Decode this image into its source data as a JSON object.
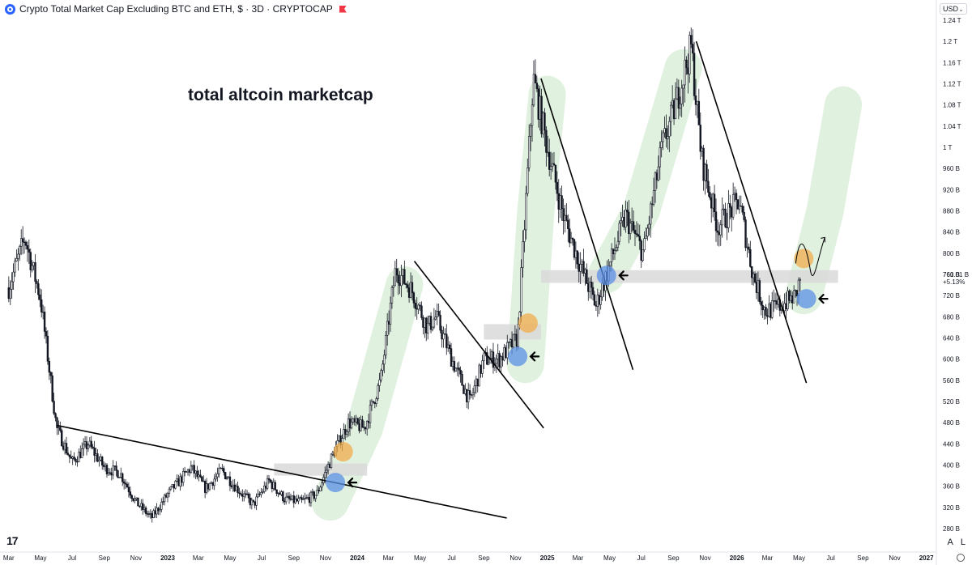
{
  "header": {
    "title": "Crypto Total Market Cap Excluding BTC and ETH, $ · 3D · CRYPTOCAP",
    "currency": "USD"
  },
  "annotation": "total altcoin marketcap",
  "price_label": {
    "value": "761.01 B",
    "change": "+5.13%"
  },
  "corner_buttons": [
    "A",
    "L"
  ],
  "chart_data": {
    "type": "candlestick",
    "title": "Crypto Total Market Cap Excluding BTC and ETH",
    "y_unit": "B",
    "ylim": [
      265,
      1245
    ],
    "y_ticks": [
      "280 B",
      "320 B",
      "360 B",
      "400 B",
      "440 B",
      "480 B",
      "520 B",
      "560 B",
      "600 B",
      "640 B",
      "680 B",
      "720 B",
      "760 B",
      "800 B",
      "840 B",
      "880 B",
      "920 B",
      "960 B",
      "1 T",
      "1.04 T",
      "1.08 T",
      "1.12 T",
      "1.16 T",
      "1.2 T",
      "1.24 T"
    ],
    "x_ticks": [
      "Mar",
      "May",
      "Jul",
      "Sep",
      "Nov",
      "2023",
      "Mar",
      "May",
      "Jul",
      "Sep",
      "Nov",
      "2024",
      "Mar",
      "May",
      "Jul",
      "Sep",
      "Nov",
      "2025",
      "Mar",
      "May",
      "Jul",
      "Sep",
      "Nov",
      "2026",
      "Mar",
      "May",
      "Jul",
      "Sep",
      "Nov",
      "2027"
    ],
    "price_path": [
      [
        "2022-03-01",
        735
      ],
      [
        "2022-04-01",
        830
      ],
      [
        "2022-05-01",
        715
      ],
      [
        "2022-06-01",
        470
      ],
      [
        "2022-07-01",
        405
      ],
      [
        "2022-08-01",
        440
      ],
      [
        "2022-09-01",
        395
      ],
      [
        "2022-10-01",
        385
      ],
      [
        "2022-11-01",
        330
      ],
      [
        "2022-12-01",
        300
      ],
      [
        "2023-01-01",
        345
      ],
      [
        "2023-02-15",
        395
      ],
      [
        "2023-03-15",
        355
      ],
      [
        "2023-04-15",
        390
      ],
      [
        "2023-05-15",
        355
      ],
      [
        "2023-06-15",
        325
      ],
      [
        "2023-07-15",
        370
      ],
      [
        "2023-08-15",
        335
      ],
      [
        "2023-09-15",
        330
      ],
      [
        "2023-10-15",
        345
      ],
      [
        "2023-11-15",
        420
      ],
      [
        "2023-12-15",
        480
      ],
      [
        "2024-01-15",
        470
      ],
      [
        "2024-02-15",
        560
      ],
      [
        "2024-03-15",
        770
      ],
      [
        "2024-04-15",
        730
      ],
      [
        "2024-05-15",
        660
      ],
      [
        "2024-06-01",
        680
      ],
      [
        "2024-07-01",
        600
      ],
      [
        "2024-08-05",
        520
      ],
      [
        "2024-09-01",
        600
      ],
      [
        "2024-10-01",
        600
      ],
      [
        "2024-11-05",
        640
      ],
      [
        "2024-12-05",
        1130
      ],
      [
        "2025-01-01",
        1000
      ],
      [
        "2025-02-01",
        870
      ],
      [
        "2025-03-01",
        790
      ],
      [
        "2025-04-05",
        700
      ],
      [
        "2025-04-25",
        760
      ],
      [
        "2025-06-01",
        870
      ],
      [
        "2025-07-05",
        800
      ],
      [
        "2025-08-10",
        1000
      ],
      [
        "2025-09-05",
        1080
      ],
      [
        "2025-10-05",
        1190
      ],
      [
        "2025-10-25",
        980
      ],
      [
        "2025-11-25",
        850
      ],
      [
        "2026-01-05",
        900
      ],
      [
        "2026-02-01",
        760
      ],
      [
        "2026-02-25",
        690
      ],
      [
        "2026-03-25",
        700
      ],
      [
        "2026-04-25",
        720
      ],
      [
        "2026-05-05",
        761
      ]
    ],
    "trendlines": [
      {
        "from": [
          "2022-06-01",
          475
        ],
        "to": [
          "2024-10-15",
          300
        ]
      },
      {
        "from": [
          "2024-04-20",
          785
        ],
        "to": [
          "2024-12-25",
          470
        ]
      },
      {
        "from": [
          "2024-12-20",
          1130
        ],
        "to": [
          "2025-06-15",
          580
        ]
      },
      {
        "from": [
          "2025-10-15",
          1200
        ],
        "to": [
          "2026-05-15",
          555
        ]
      }
    ],
    "zones": [
      {
        "from": "2023-07-25",
        "to": "2024-01-20",
        "low": 380,
        "high": 403
      },
      {
        "from": "2024-09-01",
        "to": "2024-12-20",
        "low": 637,
        "high": 666
      },
      {
        "from": "2024-12-20",
        "to": "2026-07-15",
        "low": 744,
        "high": 768
      }
    ],
    "highlights": [
      {
        "date": "2023-11-20",
        "value": 367,
        "color": "blue"
      },
      {
        "date": "2023-12-05",
        "value": 425,
        "color": "orange"
      },
      {
        "date": "2024-11-05",
        "value": 605,
        "color": "blue"
      },
      {
        "date": "2024-11-25",
        "value": 668,
        "color": "orange"
      },
      {
        "date": "2025-04-25",
        "value": 758,
        "color": "blue"
      },
      {
        "date": "2026-05-15",
        "value": 714,
        "color": "blue"
      },
      {
        "date": "2026-05-10",
        "value": 790,
        "color": "orange"
      }
    ],
    "legend": "none",
    "grid": false
  },
  "colors": {
    "candle": "#131722",
    "trend_green": "#d5ecd5",
    "zone": "#d9d9d9",
    "blue_circle": "#5b8fe6",
    "orange_circle": "#f2ac4c"
  }
}
